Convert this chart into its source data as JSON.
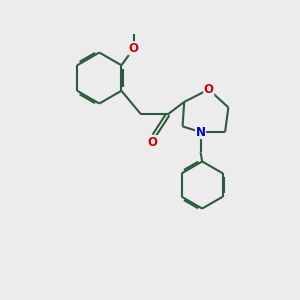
{
  "bg_color": "#ececec",
  "bond_color": "#2d5a3d",
  "O_color": "#cc0000",
  "N_color": "#0000cc",
  "line_width": 1.5,
  "dbo": 0.055,
  "font_size": 8.5,
  "figsize": [
    3.0,
    3.0
  ],
  "dpi": 100,
  "xlim": [
    0.0,
    7.5
  ],
  "ylim": [
    0.0,
    9.0
  ]
}
